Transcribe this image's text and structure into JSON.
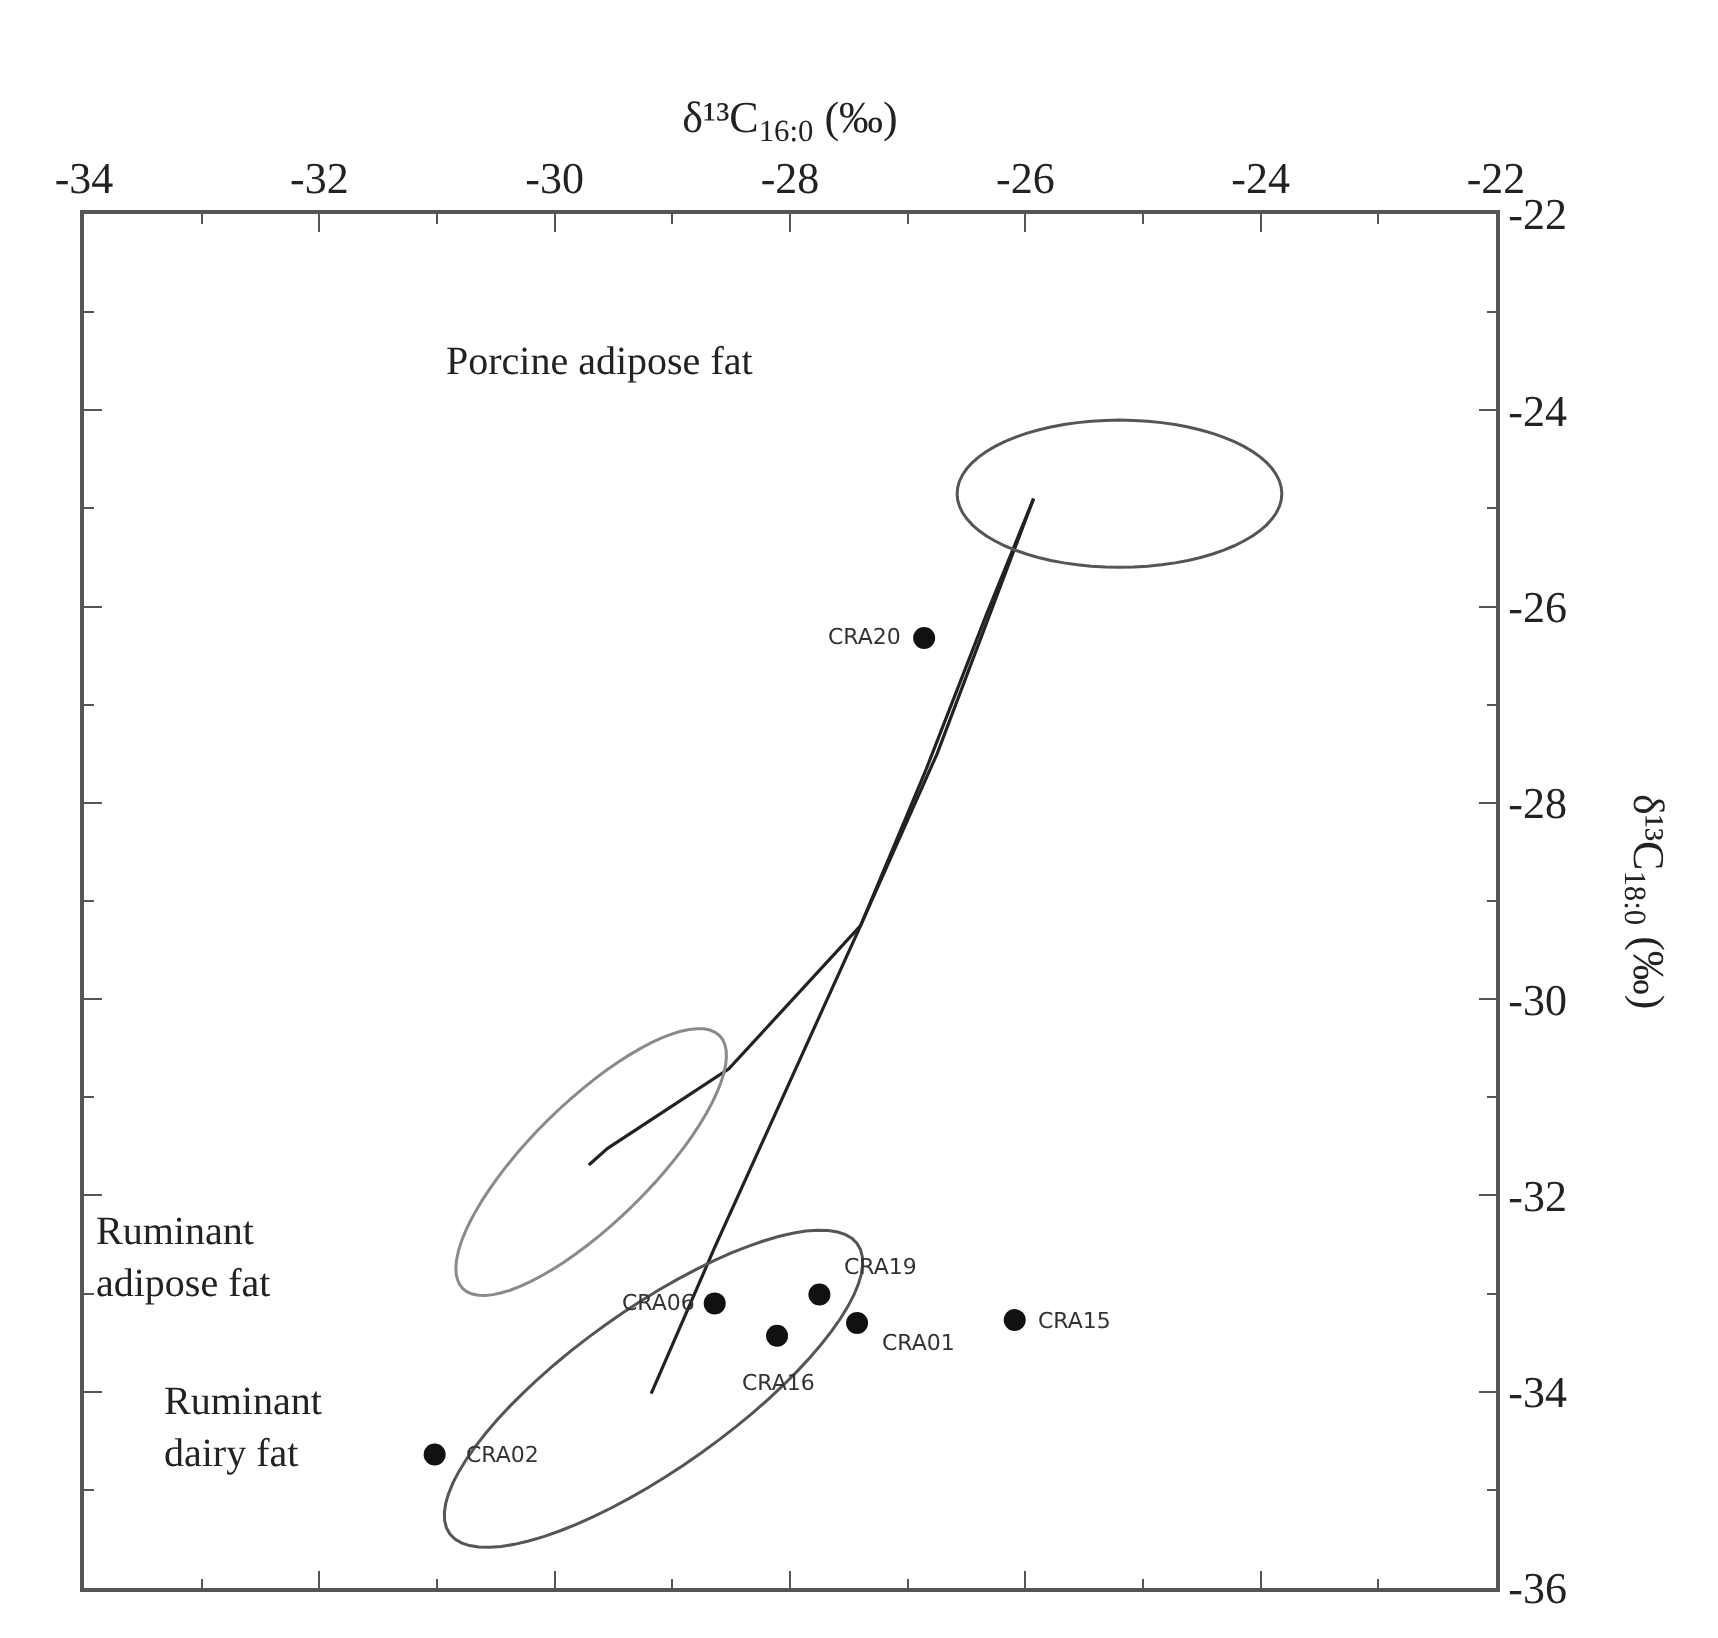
{
  "chart_data": {
    "type": "scatter",
    "xlabel": "δ¹³C$_{16:0}$ (‰)",
    "ylabel": "δ¹³C$_{18:0}$ (‰)",
    "xlim": [
      -34,
      -22
    ],
    "xticks": [
      -34,
      -32,
      -30,
      -28,
      -26,
      -24,
      -22
    ],
    "ylim": [
      -36,
      -22
    ],
    "yticks": [
      -36,
      -34,
      -32,
      -30,
      -28,
      -26,
      -24,
      -22
    ],
    "series": [
      {
        "color": "#111111",
        "marker": "circle",
        "x": [
          -26.86,
          -28.64,
          -27.75,
          -28.11,
          -27.43,
          -26.09,
          -31.02
        ],
        "values": [
          -26.32,
          -33.1,
          -33.01,
          -33.43,
          -33.3,
          -33.27,
          -34.64
        ]
      },
      {
        "type": "line",
        "color": "#222222",
        "marker": "none",
        "line_style": "solid",
        "x": [
          -29.71,
          -29.55,
          -28.52,
          -27.4,
          -26.85,
          -26.33,
          -25.93
        ],
        "values": [
          -31.69,
          -31.52,
          -30.71,
          -29.25,
          -27.68,
          -26.08,
          -24.9
        ]
      },
      {
        "type": "line",
        "color": "#222222",
        "marker": "none",
        "line_style": "solid",
        "x": [
          -29.18,
          -28.64,
          -27.4,
          -26.75,
          -25.93
        ],
        "values": [
          -34.02,
          -32.53,
          -29.25,
          -27.5,
          -24.9
        ]
      }
    ],
    "annotations": [
      "Porcine adipose fat",
      "Ruminant\nadipose fat",
      "Ruminant\ndairy fat",
      {
        "text": "CRA20",
        "x": -26.86,
        "y": -26.32
      },
      {
        "text": "CRA06",
        "x": -28.64,
        "y": -33.1
      },
      {
        "text": "CRA19",
        "x": -27.75,
        "y": -33.01
      },
      {
        "text": "CRA16",
        "x": -28.11,
        "y": -33.43
      },
      {
        "text": "CRA01",
        "x": -27.43,
        "y": -33.3
      },
      {
        "text": "CRA15",
        "x": -26.09,
        "y": -33.27
      },
      {
        "text": "CRA02",
        "x": -31.02,
        "y": -34.64
      }
    ]
  }
}
